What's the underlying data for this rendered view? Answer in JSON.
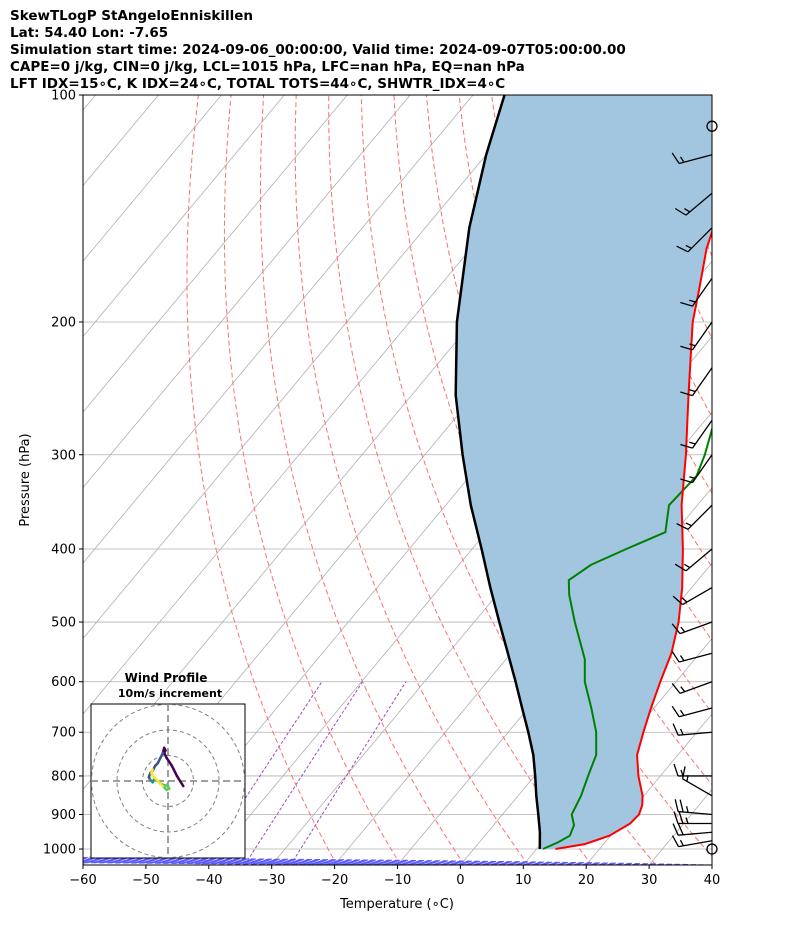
{
  "header": {
    "line1": "SkewTLogP StAngeloEnniskillen",
    "line2": "Lat: 54.40   Lon: -7.65",
    "line3": "Simulation start time: 2024-09-06_00:00:00, Valid time: 2024-09-07T05:00:00.00",
    "line4": "CAPE=0 j/kg, CIN=0 j/kg, LCL=1015 hPa, LFC=nan hPa, EQ=nan hPa",
    "line5": "LFT IDX=15∘C, K IDX=24∘C, TOTAL TOTS=44∘C, SHWTR_IDX=4∘C"
  },
  "chart_data": {
    "type": "line",
    "skew": "skew-T log-P",
    "xlabel": "Temperature (∘C)",
    "ylabel": "Pressure (hPa)",
    "xlim": [
      -60,
      40
    ],
    "ylim": [
      1050,
      100
    ],
    "y_scale": "log",
    "x_ticks": [
      -60,
      -50,
      -40,
      -30,
      -20,
      -10,
      0,
      10,
      20,
      30,
      40
    ],
    "y_ticks": [
      1000,
      900,
      800,
      700,
      600,
      500,
      400,
      300,
      200,
      100
    ],
    "grid": true,
    "colors": {
      "temperature": "#ff0000",
      "dewpoint": "#008000",
      "parcel": "#000000",
      "shading": "#a3c6e0",
      "dry_adiabats": "#ff6f6f",
      "moist_adiabats": "#5a5aff",
      "mixing_ratio": "#9a47c9"
    },
    "series": [
      {
        "key": "temperature",
        "points": [
          [
            1000,
            13
          ],
          [
            985,
            17
          ],
          [
            960,
            19.8
          ],
          [
            925,
            21.5
          ],
          [
            900,
            21.7
          ],
          [
            875,
            21
          ],
          [
            850,
            19.8
          ],
          [
            800,
            16.5
          ],
          [
            750,
            13.5
          ],
          [
            700,
            11.5
          ],
          [
            650,
            9.5
          ],
          [
            600,
            7.5
          ],
          [
            550,
            5.5
          ],
          [
            500,
            2.5
          ],
          [
            450,
            -1.5
          ],
          [
            400,
            -6.5
          ],
          [
            350,
            -12.5
          ],
          [
            300,
            -18.5
          ],
          [
            250,
            -26
          ],
          [
            200,
            -35
          ],
          [
            180,
            -38.5
          ],
          [
            160,
            -42.5
          ],
          [
            140,
            -46
          ],
          [
            130,
            -49.5
          ],
          [
            115,
            -51.5
          ],
          [
            100,
            -54
          ]
        ]
      },
      {
        "key": "dewpoint",
        "points": [
          [
            1000,
            11
          ],
          [
            980,
            12.5
          ],
          [
            960,
            13.5
          ],
          [
            930,
            12.8
          ],
          [
            900,
            11
          ],
          [
            850,
            10
          ],
          [
            800,
            8.5
          ],
          [
            750,
            7
          ],
          [
            700,
            4
          ],
          [
            650,
            0
          ],
          [
            600,
            -4.5
          ],
          [
            560,
            -7.5
          ],
          [
            500,
            -14
          ],
          [
            460,
            -18.5
          ],
          [
            440,
            -20.5
          ],
          [
            420,
            -19
          ],
          [
            400,
            -15.5
          ],
          [
            380,
            -11.5
          ],
          [
            350,
            -14.5
          ],
          [
            320,
            -14
          ],
          [
            300,
            -15.5
          ],
          [
            270,
            -18.5
          ],
          [
            250,
            -22
          ],
          [
            230,
            -24
          ],
          [
            200,
            -29
          ],
          [
            180,
            -33
          ],
          [
            165,
            -34
          ],
          [
            150,
            -37.5
          ],
          [
            140,
            -41
          ],
          [
            125,
            -44
          ],
          [
            110,
            -50
          ],
          [
            100,
            -53.5
          ]
        ]
      },
      {
        "key": "parcel",
        "points": [
          [
            1000,
            10.5
          ],
          [
            950,
            8.3
          ],
          [
            900,
            5.7
          ],
          [
            850,
            2.9
          ],
          [
            800,
            0.1
          ],
          [
            750,
            -3
          ],
          [
            700,
            -6.8
          ],
          [
            650,
            -11
          ],
          [
            600,
            -15.5
          ],
          [
            550,
            -20.5
          ],
          [
            500,
            -26
          ],
          [
            450,
            -32
          ],
          [
            400,
            -38.5
          ],
          [
            350,
            -46
          ],
          [
            300,
            -54
          ],
          [
            250,
            -63
          ],
          [
            200,
            -72.5
          ],
          [
            150,
            -83
          ],
          [
            120,
            -90
          ],
          [
            100,
            -95
          ]
        ]
      }
    ],
    "wind_barbs": [
      {
        "p": 1000,
        "speed_kt": 0,
        "calm": true
      },
      {
        "p": 975,
        "speed_kt": 15,
        "dir": 260
      },
      {
        "p": 950,
        "speed_kt": 20,
        "dir": 265
      },
      {
        "p": 925,
        "speed_kt": 25,
        "dir": 270
      },
      {
        "p": 900,
        "speed_kt": 25,
        "dir": 275
      },
      {
        "p": 850,
        "speed_kt": 15,
        "dir": 300
      },
      {
        "p": 800,
        "speed_kt": 15,
        "dir": 270
      },
      {
        "p": 700,
        "speed_kt": 15,
        "dir": 265
      },
      {
        "p": 650,
        "speed_kt": 15,
        "dir": 255
      },
      {
        "p": 600,
        "speed_kt": 15,
        "dir": 250
      },
      {
        "p": 550,
        "speed_kt": 15,
        "dir": 255
      },
      {
        "p": 500,
        "speed_kt": 15,
        "dir": 250
      },
      {
        "p": 450,
        "speed_kt": 15,
        "dir": 240
      },
      {
        "p": 400,
        "speed_kt": 15,
        "dir": 230
      },
      {
        "p": 350,
        "speed_kt": 15,
        "dir": 225
      },
      {
        "p": 300,
        "speed_kt": 15,
        "dir": 215
      },
      {
        "p": 270,
        "speed_kt": 15,
        "dir": 215
      },
      {
        "p": 230,
        "speed_kt": 15,
        "dir": 215
      },
      {
        "p": 200,
        "speed_kt": 15,
        "dir": 215
      },
      {
        "p": 175,
        "speed_kt": 15,
        "dir": 215
      },
      {
        "p": 150,
        "speed_kt": 15,
        "dir": 225
      },
      {
        "p": 135,
        "speed_kt": 15,
        "dir": 230
      },
      {
        "p": 120,
        "speed_kt": 15,
        "dir": 255
      },
      {
        "p": 110,
        "speed_kt": 0,
        "calm": true
      }
    ],
    "hodograph": {
      "title": "Wind Profile",
      "subtitle": "10m/s increment",
      "rings": 3,
      "colormap": [
        "#440154",
        "#3b528b",
        "#21918c",
        "#5ec962",
        "#fde725"
      ],
      "trace": [
        [
          -6,
          2
        ],
        [
          -3.5,
          -2
        ],
        [
          -1.5,
          -6
        ],
        [
          0.5,
          -9
        ],
        [
          1.5,
          -11
        ],
        [
          1,
          -12
        ],
        [
          1.5,
          -13
        ],
        [
          2,
          -11
        ],
        [
          3,
          -9
        ],
        [
          4,
          -7
        ],
        [
          5,
          -6
        ],
        [
          6,
          -4
        ],
        [
          7,
          -3
        ],
        [
          7.5,
          -1.5
        ],
        [
          7,
          -0.5
        ],
        [
          6,
          0.5
        ],
        [
          5.5,
          -0.5
        ],
        [
          4,
          0
        ],
        [
          3.5,
          0.5
        ],
        [
          3,
          1
        ],
        [
          2,
          1.5
        ],
        [
          1,
          2
        ],
        [
          0.5,
          1.5
        ],
        [
          0,
          2
        ],
        [
          -0.5,
          3
        ],
        [
          0.5,
          3.5
        ],
        [
          1,
          3
        ],
        [
          1.5,
          2.5
        ],
        [
          2,
          2
        ],
        [
          3,
          1
        ],
        [
          4,
          0
        ],
        [
          5,
          -1
        ],
        [
          6,
          -2
        ],
        [
          6.5,
          -3
        ],
        [
          6,
          -4.5
        ]
      ]
    }
  }
}
